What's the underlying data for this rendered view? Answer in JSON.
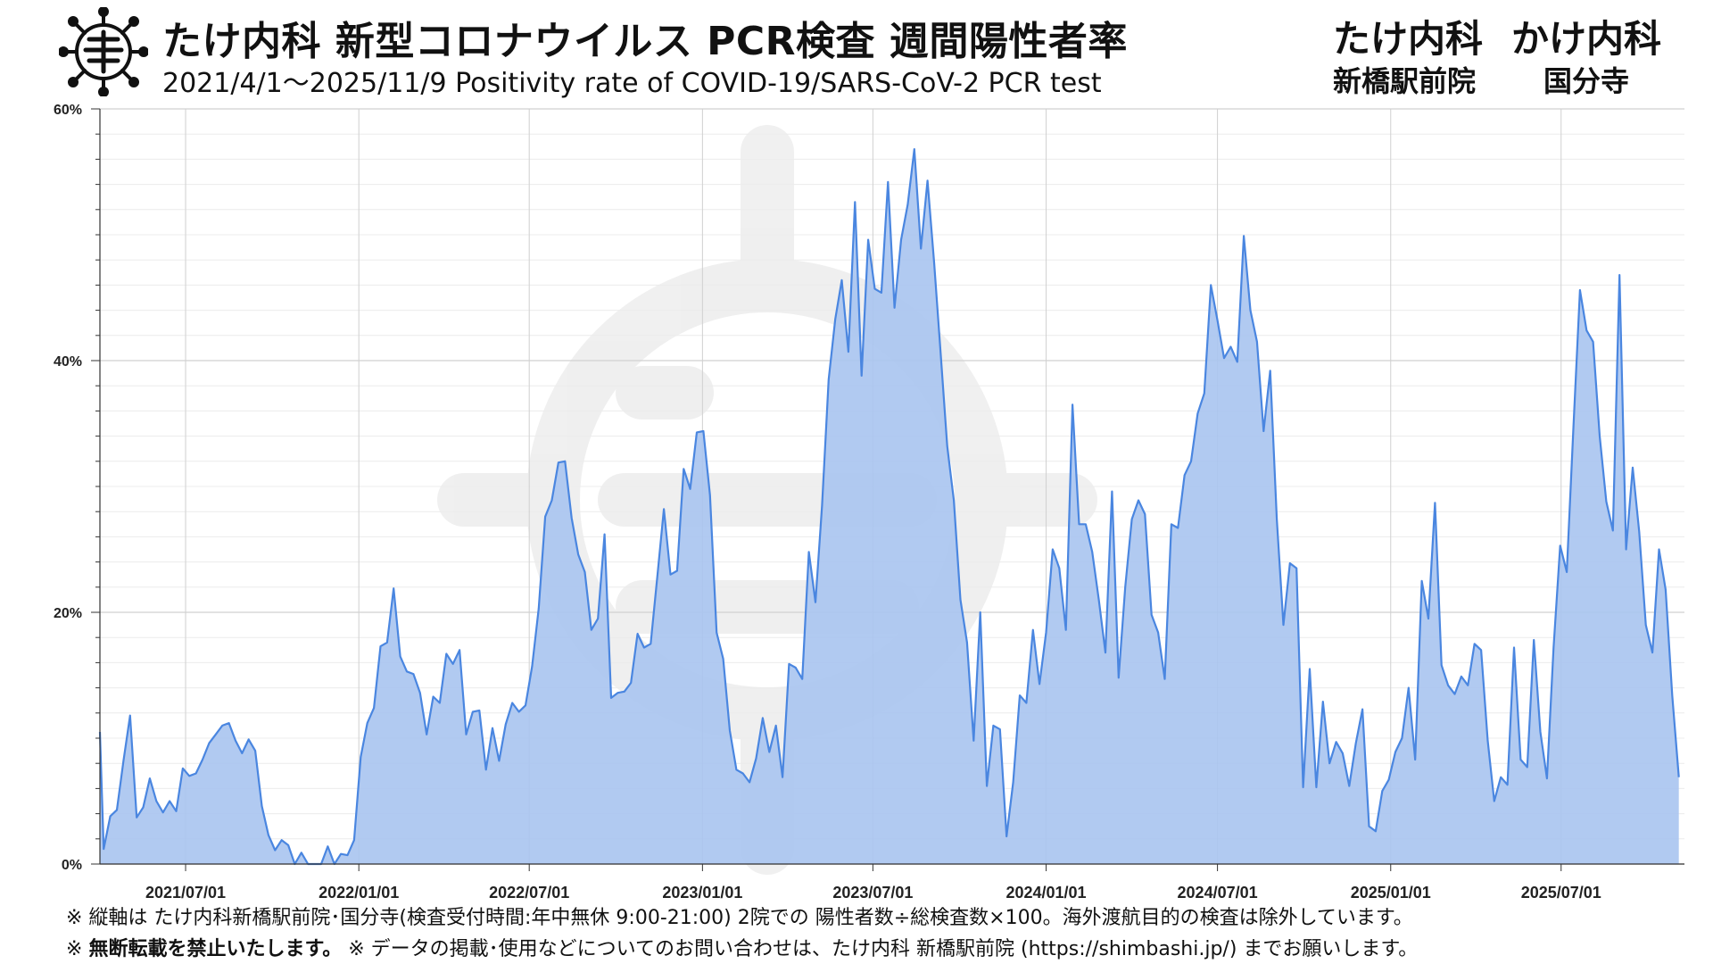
{
  "header": {
    "title": "たけ内科 新型コロナウイルス PCR検査 週間陽性者率",
    "subtitle": "2021/4/1〜2025/11/9  Positivity rate of COVID-19/SARS-CoV-2 PCR test",
    "clinic_1_name": "たけ内科",
    "clinic_1_location": "新橋駅前院",
    "clinic_2_name": "かけ内科",
    "clinic_2_location": "国分寺"
  },
  "footer": {
    "note_1": "※ 縦軸は たけ内科新橋駅前院･国分寺(検査受付時間:年中無休 9:00-21:00) 2院での 陽性者数÷総検査数×100。海外渡航目的の検査は除外しています。",
    "note_2_prefix": "※ ",
    "note_2_bold": "無断転載を禁止いたします。",
    "note_2_rest": " ※ データの掲載･使用などについてのお問い合わせは、たけ内科 新橋駅前院 (https://shimbashi.jp/) までお願いします。"
  },
  "colors": {
    "area_fill": "#a8c4f0",
    "line": "#4a86e0",
    "grid_major": "#d0d0d0",
    "grid_minor": "#ececec",
    "axis": "#333333"
  },
  "icons": [
    "virus-logo-icon"
  ],
  "chart_data": {
    "type": "area",
    "title": "たけ内科 新型コロナウイルス PCR検査 週間陽性者率",
    "xlabel": "",
    "ylabel": "",
    "ylim": [
      0,
      60
    ],
    "xlim": [
      "2021-04-01",
      "2025-11-09"
    ],
    "y_ticks": [
      0,
      20,
      40,
      60
    ],
    "y_tick_labels": [
      "0%",
      "20%",
      "40%",
      "60%"
    ],
    "x_ticks": [
      "2021-07-01",
      "2022-01-01",
      "2022-07-01",
      "2023-01-01",
      "2023-07-01",
      "2024-01-01",
      "2024-07-01",
      "2025-01-01",
      "2025-07-01"
    ],
    "x_tick_labels": [
      "2021/07/01",
      "2022/01/01",
      "2022/07/01",
      "2023/01/01",
      "2023/07/01",
      "2024/01/01",
      "2024/07/01",
      "2025/01/01",
      "2025/07/01"
    ],
    "grid": true,
    "series": [
      {
        "points": [
          [
            "2021-04-01",
            10.5
          ],
          [
            "2021-04-05",
            1.2
          ],
          [
            "2021-04-12",
            3.8
          ],
          [
            "2021-04-19",
            4.3
          ],
          [
            "2021-04-26",
            8.2
          ],
          [
            "2021-05-03",
            11.8
          ],
          [
            "2021-05-10",
            3.7
          ],
          [
            "2021-05-17",
            4.5
          ],
          [
            "2021-05-24",
            6.8
          ],
          [
            "2021-05-31",
            5.0
          ],
          [
            "2021-06-07",
            4.1
          ],
          [
            "2021-06-14",
            5.0
          ],
          [
            "2021-06-21",
            4.2
          ],
          [
            "2021-06-28",
            7.6
          ],
          [
            "2021-07-05",
            7.0
          ],
          [
            "2021-07-12",
            7.2
          ],
          [
            "2021-07-19",
            8.3
          ],
          [
            "2021-07-26",
            9.6
          ],
          [
            "2021-08-02",
            10.3
          ],
          [
            "2021-08-09",
            11.0
          ],
          [
            "2021-08-16",
            11.2
          ],
          [
            "2021-08-23",
            9.8
          ],
          [
            "2021-08-30",
            8.8
          ],
          [
            "2021-09-06",
            9.9
          ],
          [
            "2021-09-13",
            9.0
          ],
          [
            "2021-09-20",
            4.6
          ],
          [
            "2021-09-27",
            2.3
          ],
          [
            "2021-10-04",
            1.1
          ],
          [
            "2021-10-11",
            1.9
          ],
          [
            "2021-10-18",
            1.5
          ],
          [
            "2021-10-25",
            0.0
          ],
          [
            "2021-11-01",
            0.9
          ],
          [
            "2021-11-08",
            0.0
          ],
          [
            "2021-11-15",
            0.0
          ],
          [
            "2021-11-22",
            0.0
          ],
          [
            "2021-11-29",
            1.4
          ],
          [
            "2021-12-06",
            0.0
          ],
          [
            "2021-12-13",
            0.8
          ],
          [
            "2021-12-20",
            0.7
          ],
          [
            "2021-12-27",
            1.9
          ],
          [
            "2022-01-03",
            8.5
          ],
          [
            "2022-01-10",
            11.2
          ],
          [
            "2022-01-17",
            12.4
          ],
          [
            "2022-01-24",
            17.3
          ],
          [
            "2022-01-31",
            17.6
          ],
          [
            "2022-02-07",
            21.9
          ],
          [
            "2022-02-14",
            16.5
          ],
          [
            "2022-02-21",
            15.3
          ],
          [
            "2022-02-28",
            15.1
          ],
          [
            "2022-03-07",
            13.6
          ],
          [
            "2022-03-14",
            10.3
          ],
          [
            "2022-03-21",
            13.3
          ],
          [
            "2022-03-28",
            12.8
          ],
          [
            "2022-04-04",
            16.7
          ],
          [
            "2022-04-11",
            15.9
          ],
          [
            "2022-04-18",
            17.0
          ],
          [
            "2022-04-25",
            10.3
          ],
          [
            "2022-05-02",
            12.1
          ],
          [
            "2022-05-09",
            12.2
          ],
          [
            "2022-05-16",
            7.5
          ],
          [
            "2022-05-23",
            10.8
          ],
          [
            "2022-05-30",
            8.2
          ],
          [
            "2022-06-06",
            11.1
          ],
          [
            "2022-06-13",
            12.8
          ],
          [
            "2022-06-20",
            12.1
          ],
          [
            "2022-06-27",
            12.6
          ],
          [
            "2022-07-04",
            15.7
          ],
          [
            "2022-07-11",
            20.3
          ],
          [
            "2022-07-18",
            27.6
          ],
          [
            "2022-07-25",
            28.9
          ],
          [
            "2022-08-01",
            31.9
          ],
          [
            "2022-08-08",
            32.0
          ],
          [
            "2022-08-15",
            27.5
          ],
          [
            "2022-08-22",
            24.6
          ],
          [
            "2022-08-29",
            23.2
          ],
          [
            "2022-09-05",
            18.6
          ],
          [
            "2022-09-12",
            19.5
          ],
          [
            "2022-09-19",
            26.2
          ],
          [
            "2022-09-26",
            13.2
          ],
          [
            "2022-10-03",
            13.6
          ],
          [
            "2022-10-10",
            13.7
          ],
          [
            "2022-10-17",
            14.4
          ],
          [
            "2022-10-24",
            18.3
          ],
          [
            "2022-10-31",
            17.2
          ],
          [
            "2022-11-07",
            17.5
          ],
          [
            "2022-11-14",
            22.8
          ],
          [
            "2022-11-21",
            28.2
          ],
          [
            "2022-11-28",
            23.0
          ],
          [
            "2022-12-05",
            23.3
          ],
          [
            "2022-12-12",
            31.4
          ],
          [
            "2022-12-19",
            29.8
          ],
          [
            "2022-12-26",
            34.3
          ],
          [
            "2023-01-02",
            34.4
          ],
          [
            "2023-01-09",
            29.3
          ],
          [
            "2023-01-16",
            18.4
          ],
          [
            "2023-01-23",
            16.3
          ],
          [
            "2023-01-30",
            10.6
          ],
          [
            "2023-02-06",
            7.5
          ],
          [
            "2023-02-13",
            7.2
          ],
          [
            "2023-02-20",
            6.5
          ],
          [
            "2023-02-27",
            8.4
          ],
          [
            "2023-03-06",
            11.6
          ],
          [
            "2023-03-13",
            8.9
          ],
          [
            "2023-03-20",
            11.0
          ],
          [
            "2023-03-27",
            6.9
          ],
          [
            "2023-04-03",
            15.9
          ],
          [
            "2023-04-10",
            15.6
          ],
          [
            "2023-04-17",
            14.7
          ],
          [
            "2023-04-24",
            24.8
          ],
          [
            "2023-05-01",
            20.8
          ],
          [
            "2023-05-08",
            28.5
          ],
          [
            "2023-05-15",
            38.5
          ],
          [
            "2023-05-22",
            43.3
          ],
          [
            "2023-05-29",
            46.4
          ],
          [
            "2023-06-05",
            40.7
          ],
          [
            "2023-06-12",
            52.6
          ],
          [
            "2023-06-19",
            38.8
          ],
          [
            "2023-06-26",
            49.6
          ],
          [
            "2023-07-03",
            45.7
          ],
          [
            "2023-07-10",
            45.4
          ],
          [
            "2023-07-17",
            54.2
          ],
          [
            "2023-07-24",
            44.2
          ],
          [
            "2023-07-31",
            49.6
          ],
          [
            "2023-08-07",
            52.4
          ],
          [
            "2023-08-14",
            56.8
          ],
          [
            "2023-08-21",
            48.9
          ],
          [
            "2023-08-28",
            54.3
          ],
          [
            "2023-09-04",
            47.8
          ],
          [
            "2023-09-11",
            40.6
          ],
          [
            "2023-09-18",
            33.2
          ],
          [
            "2023-09-25",
            28.9
          ],
          [
            "2023-10-02",
            21.0
          ],
          [
            "2023-10-09",
            17.6
          ],
          [
            "2023-10-16",
            9.8
          ],
          [
            "2023-10-23",
            20.0
          ],
          [
            "2023-10-30",
            6.2
          ],
          [
            "2023-11-06",
            11.0
          ],
          [
            "2023-11-13",
            10.7
          ],
          [
            "2023-11-20",
            2.2
          ],
          [
            "2023-11-27",
            6.5
          ],
          [
            "2023-12-04",
            13.4
          ],
          [
            "2023-12-11",
            12.8
          ],
          [
            "2023-12-18",
            18.6
          ],
          [
            "2023-12-25",
            14.3
          ],
          [
            "2024-01-01",
            18.4
          ],
          [
            "2024-01-08",
            25.0
          ],
          [
            "2024-01-15",
            23.5
          ],
          [
            "2024-01-22",
            18.6
          ],
          [
            "2024-01-29",
            36.5
          ],
          [
            "2024-02-05",
            27.0
          ],
          [
            "2024-02-12",
            27.0
          ],
          [
            "2024-02-19",
            24.8
          ],
          [
            "2024-02-26",
            21.0
          ],
          [
            "2024-03-04",
            16.8
          ],
          [
            "2024-03-11",
            29.6
          ],
          [
            "2024-03-18",
            14.8
          ],
          [
            "2024-03-25",
            22.0
          ],
          [
            "2024-04-01",
            27.4
          ],
          [
            "2024-04-08",
            28.9
          ],
          [
            "2024-04-15",
            27.8
          ],
          [
            "2024-04-22",
            19.8
          ],
          [
            "2024-04-29",
            18.4
          ],
          [
            "2024-05-06",
            14.7
          ],
          [
            "2024-05-13",
            27.0
          ],
          [
            "2024-05-20",
            26.7
          ],
          [
            "2024-05-27",
            30.9
          ],
          [
            "2024-06-03",
            32.0
          ],
          [
            "2024-06-10",
            35.8
          ],
          [
            "2024-06-17",
            37.4
          ],
          [
            "2024-06-24",
            46.0
          ],
          [
            "2024-07-01",
            43.2
          ],
          [
            "2024-07-08",
            40.2
          ],
          [
            "2024-07-15",
            41.1
          ],
          [
            "2024-07-22",
            39.9
          ],
          [
            "2024-07-29",
            49.9
          ],
          [
            "2024-08-05",
            44.0
          ],
          [
            "2024-08-12",
            41.5
          ],
          [
            "2024-08-19",
            34.4
          ],
          [
            "2024-08-26",
            39.2
          ],
          [
            "2024-09-02",
            27.4
          ],
          [
            "2024-09-09",
            19.0
          ],
          [
            "2024-09-16",
            23.9
          ],
          [
            "2024-09-23",
            23.5
          ],
          [
            "2024-09-30",
            6.1
          ],
          [
            "2024-10-07",
            15.5
          ],
          [
            "2024-10-14",
            6.1
          ],
          [
            "2024-10-21",
            12.9
          ],
          [
            "2024-10-28",
            8.0
          ],
          [
            "2024-11-04",
            9.7
          ],
          [
            "2024-11-11",
            8.8
          ],
          [
            "2024-11-18",
            6.2
          ],
          [
            "2024-11-25",
            9.6
          ],
          [
            "2024-12-02",
            12.3
          ],
          [
            "2024-12-09",
            3.0
          ],
          [
            "2024-12-16",
            2.6
          ],
          [
            "2024-12-23",
            5.8
          ],
          [
            "2024-12-30",
            6.7
          ],
          [
            "2025-01-06",
            8.9
          ],
          [
            "2025-01-13",
            10.0
          ],
          [
            "2025-01-20",
            14.0
          ],
          [
            "2025-01-27",
            8.3
          ],
          [
            "2025-02-03",
            22.5
          ],
          [
            "2025-02-10",
            19.5
          ],
          [
            "2025-02-17",
            28.7
          ],
          [
            "2025-02-24",
            15.8
          ],
          [
            "2025-03-03",
            14.2
          ],
          [
            "2025-03-10",
            13.5
          ],
          [
            "2025-03-17",
            14.9
          ],
          [
            "2025-03-24",
            14.2
          ],
          [
            "2025-03-31",
            17.5
          ],
          [
            "2025-04-07",
            17.0
          ],
          [
            "2025-04-14",
            9.8
          ],
          [
            "2025-04-21",
            5.0
          ],
          [
            "2025-04-28",
            6.9
          ],
          [
            "2025-05-05",
            6.3
          ],
          [
            "2025-05-12",
            17.2
          ],
          [
            "2025-05-19",
            8.3
          ],
          [
            "2025-05-26",
            7.7
          ],
          [
            "2025-06-02",
            17.8
          ],
          [
            "2025-06-09",
            10.5
          ],
          [
            "2025-06-16",
            6.8
          ],
          [
            "2025-06-23",
            17.2
          ],
          [
            "2025-06-30",
            25.3
          ],
          [
            "2025-07-07",
            23.2
          ],
          [
            "2025-07-14",
            34.6
          ],
          [
            "2025-07-21",
            45.6
          ],
          [
            "2025-07-28",
            42.4
          ],
          [
            "2025-08-04",
            41.5
          ],
          [
            "2025-08-11",
            34.0
          ],
          [
            "2025-08-18",
            28.8
          ],
          [
            "2025-08-25",
            26.5
          ],
          [
            "2025-09-01",
            46.8
          ],
          [
            "2025-09-08",
            25.0
          ],
          [
            "2025-09-15",
            31.5
          ],
          [
            "2025-09-22",
            26.4
          ],
          [
            "2025-09-29",
            19.0
          ],
          [
            "2025-10-06",
            16.8
          ],
          [
            "2025-10-13",
            25.0
          ],
          [
            "2025-10-20",
            21.8
          ],
          [
            "2025-10-27",
            13.4
          ],
          [
            "2025-11-03",
            6.9
          ]
        ]
      }
    ]
  }
}
